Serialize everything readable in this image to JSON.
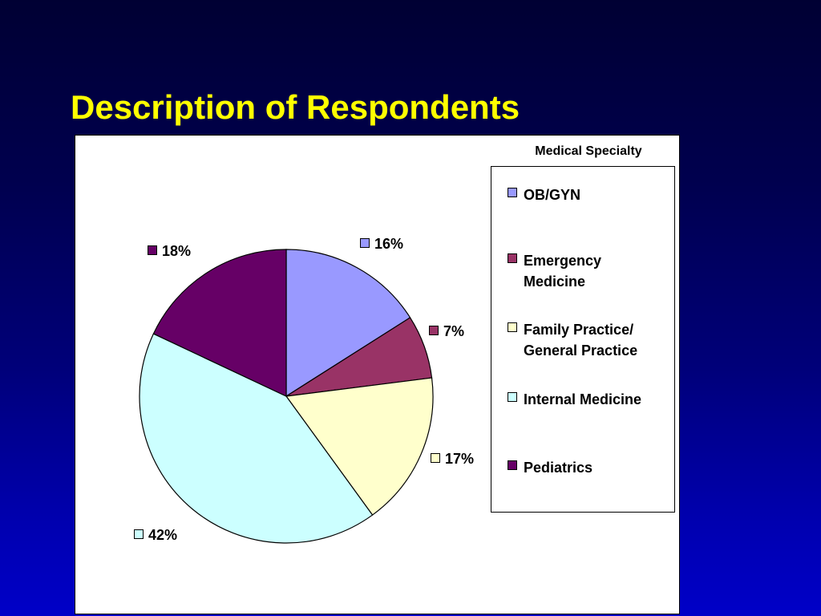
{
  "slide": {
    "title": "Description of Respondents"
  },
  "chart_data": {
    "type": "pie",
    "legend_title": "Medical Specialty",
    "legend_placement": "right",
    "categories": [
      "OB/GYN",
      "Emergency Medicine",
      "Family Practice/ General Practice",
      "Internal Medicine",
      "Pediatrics"
    ],
    "legend_labels": [
      "OB/GYN",
      "Emergency\nMedicine",
      "Family Practice/\nGeneral Practice",
      "Internal Medicine",
      "Pediatrics"
    ],
    "values": [
      16,
      7,
      17,
      42,
      18
    ],
    "data_labels": [
      "16%",
      "7%",
      "17%",
      "42%",
      "18%"
    ],
    "colors": [
      "#9999ff",
      "#993366",
      "#ffffcc",
      "#ccffff",
      "#660066"
    ]
  }
}
